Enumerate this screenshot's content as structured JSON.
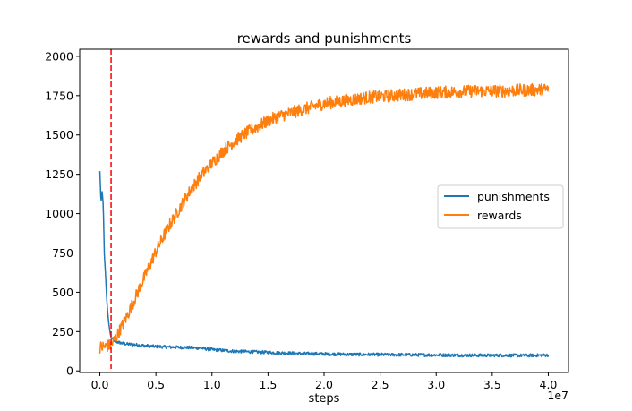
{
  "chart_data": {
    "type": "line",
    "title": "rewards and punishments",
    "xlabel": "steps",
    "ylabel": "",
    "x_offset_label": "1e7",
    "xlim": [
      -1.8,
      41.8
    ],
    "ylim": [
      -10,
      2045
    ],
    "x_unit_note": "",
    "xticks": [
      {
        "value": 0.0,
        "label": "0.0"
      },
      {
        "value": 5.0,
        "label": "0.5"
      },
      {
        "value": 10.0,
        "label": "1.0"
      },
      {
        "value": 15.0,
        "label": "1.5"
      },
      {
        "value": 20.0,
        "label": "2.0"
      },
      {
        "value": 25.0,
        "label": "2.5"
      },
      {
        "value": 30.0,
        "label": "3.0"
      },
      {
        "value": 35.0,
        "label": "3.5"
      },
      {
        "value": 40.0,
        "label": "4.0"
      }
    ],
    "yticks": [
      {
        "value": 0,
        "label": "0"
      },
      {
        "value": 250,
        "label": "250"
      },
      {
        "value": 500,
        "label": "500"
      },
      {
        "value": 750,
        "label": "750"
      },
      {
        "value": 1000,
        "label": "1000"
      },
      {
        "value": 1250,
        "label": "1250"
      },
      {
        "value": 1500,
        "label": "1500"
      },
      {
        "value": 1750,
        "label": "1750"
      },
      {
        "value": 2000,
        "label": "2000"
      }
    ],
    "vline": {
      "x": 1.0,
      "color": "#ff0000",
      "style": "dashed"
    },
    "legend": {
      "position": "center-right"
    },
    "series": [
      {
        "name": "punishments",
        "color": "#1f77b4",
        "x": [
          0.0,
          0.1,
          0.2,
          0.3,
          0.4,
          0.5,
          0.6,
          0.7,
          0.8,
          0.9,
          1.0,
          1.2,
          1.5,
          2.0,
          2.5,
          3.0,
          4.0,
          5.0,
          6.0,
          7.0,
          8.0,
          9.0,
          10.0,
          12.0,
          14.0,
          16.0,
          18.0,
          20.0,
          22.0,
          24.0,
          26.0,
          28.0,
          30.0,
          32.0,
          34.0,
          36.0,
          38.0,
          40.0
        ],
        "y": [
          1270,
          1070,
          1140,
          1060,
          740,
          620,
          470,
          370,
          300,
          250,
          210,
          195,
          185,
          175,
          170,
          168,
          160,
          155,
          152,
          150,
          148,
          145,
          135,
          125,
          120,
          115,
          110,
          108,
          105,
          104,
          103,
          102,
          101,
          100,
          99,
          99,
          98,
          100
        ],
        "noise": 10
      },
      {
        "name": "rewards",
        "color": "#ff7f0e",
        "x": [
          0.0,
          0.5,
          1.0,
          1.5,
          2.0,
          2.5,
          3.0,
          3.5,
          4.0,
          4.5,
          5.0,
          5.5,
          6.0,
          7.0,
          8.0,
          9.0,
          10.0,
          11.0,
          12.0,
          13.0,
          14.0,
          15.0,
          16.0,
          17.0,
          18.0,
          19.0,
          20.0,
          22.0,
          24.0,
          26.0,
          28.0,
          30.0,
          32.0,
          34.0,
          36.0,
          38.0,
          40.0
        ],
        "y": [
          150,
          155,
          165,
          220,
          290,
          360,
          440,
          520,
          600,
          680,
          760,
          830,
          900,
          1020,
          1140,
          1240,
          1320,
          1400,
          1460,
          1510,
          1550,
          1590,
          1620,
          1640,
          1660,
          1680,
          1700,
          1720,
          1740,
          1750,
          1760,
          1770,
          1775,
          1780,
          1780,
          1785,
          1790
        ],
        "noise": 40
      }
    ]
  }
}
